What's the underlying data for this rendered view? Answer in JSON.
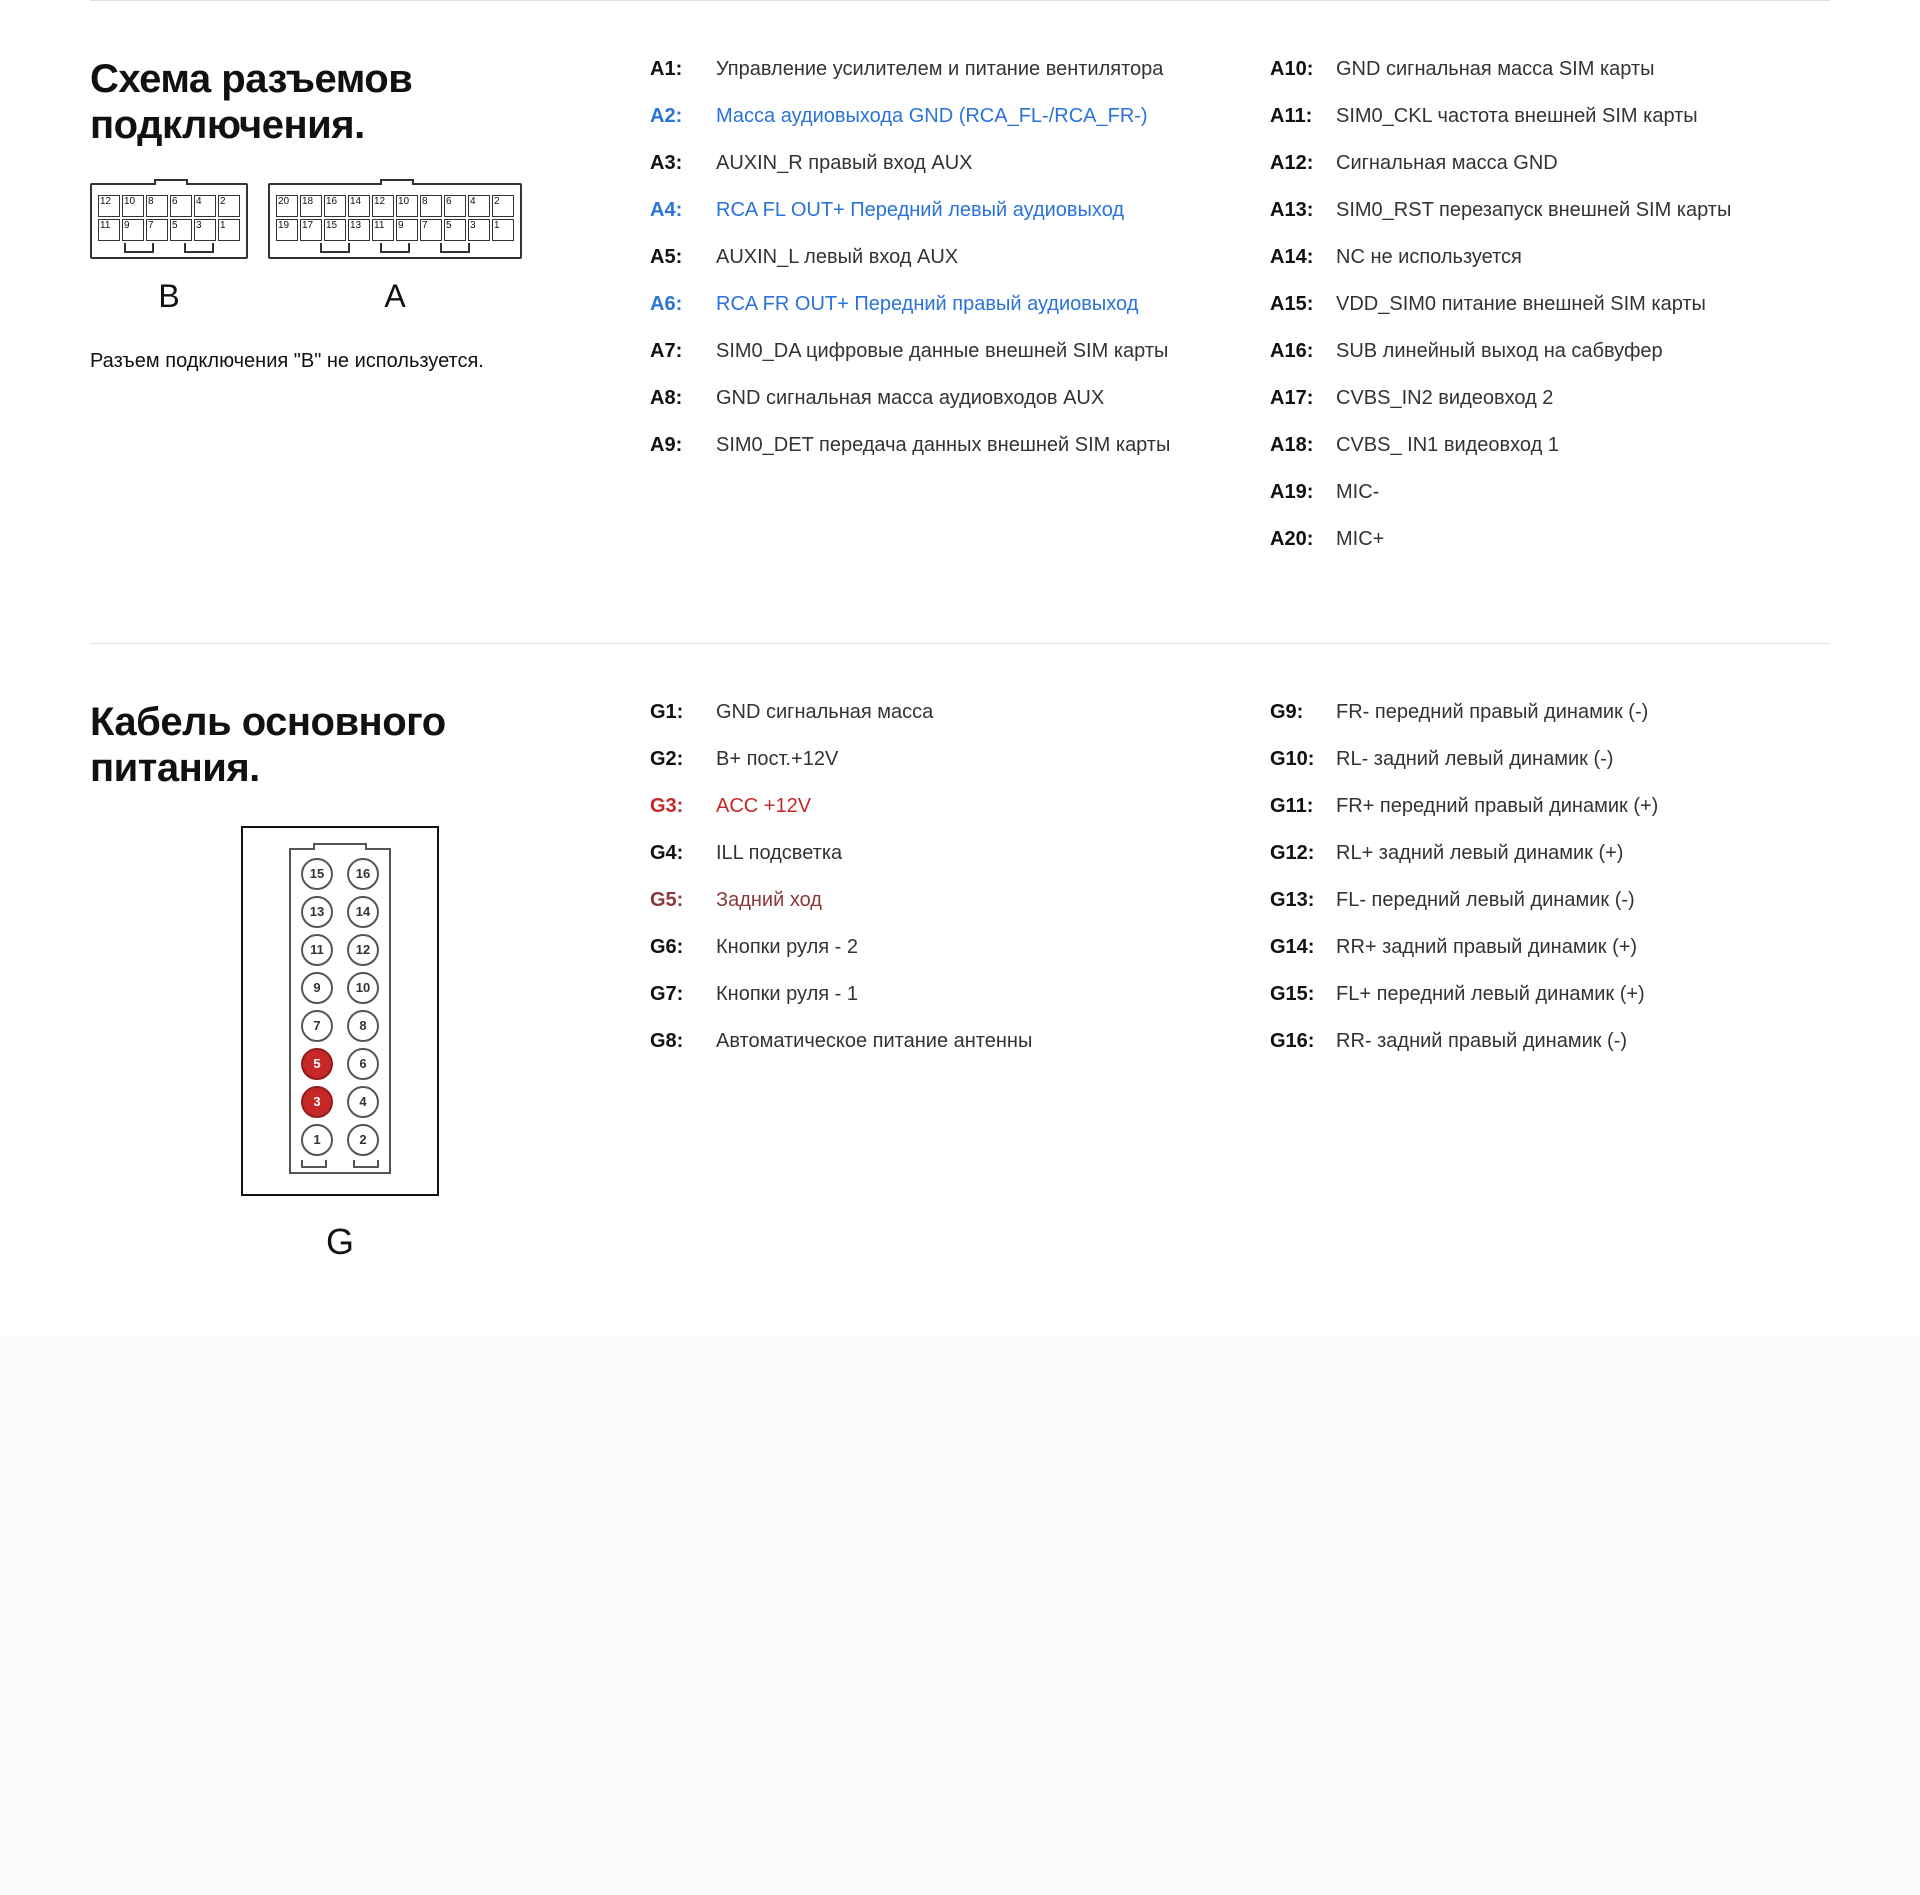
{
  "section1": {
    "title": "Схема разъемов подключения.",
    "note": "Разъем подключения \"B\" не используется.",
    "conn_b_label": "B",
    "conn_a_label": "A",
    "conn_b_rows": [
      [
        12,
        10,
        8,
        6,
        4,
        2
      ],
      [
        11,
        9,
        7,
        5,
        3,
        1
      ]
    ],
    "conn_a_rows": [
      [
        20,
        18,
        16,
        14,
        12,
        10,
        8,
        6,
        4,
        2
      ],
      [
        19,
        17,
        15,
        13,
        11,
        9,
        7,
        5,
        3,
        1
      ]
    ],
    "pinsA_left": [
      {
        "k": "A1:",
        "d": "Управление усилителем и питание вентилятора"
      },
      {
        "k": "A2:",
        "d": "Масса аудиовыхода GND (RCA_FL-/RCA_FR-)",
        "cls": "blue"
      },
      {
        "k": "A3:",
        "d": "AUXIN_R правый вход AUX"
      },
      {
        "k": "A4:",
        "d": "RCA FL OUT+  Передний левый аудиовыход",
        "cls": "blue"
      },
      {
        "k": "A5:",
        "d": "AUXIN_L левый вход AUX"
      },
      {
        "k": "A6:",
        "d": "RCA FR OUT+  Передний правый аудиовыход",
        "cls": "blue"
      },
      {
        "k": "A7:",
        "d": "SIM0_DA цифровые данные внешней SIM карты"
      },
      {
        "k": "A8:",
        "d": "GND сигнальная масса аудиовходов AUX"
      },
      {
        "k": "A9:",
        "d": "SIM0_DET передача данных внешней SIM карты"
      }
    ],
    "pinsA_right": [
      {
        "k": "A10:",
        "d": "GND сигнальная масса SIM карты"
      },
      {
        "k": "A11:",
        "d": "SIM0_CKL частота внешней SIM карты"
      },
      {
        "k": "A12:",
        "d": "Сигнальная масса GND"
      },
      {
        "k": "A13:",
        "d": "SIM0_RST перезапуск внешней SIM карты"
      },
      {
        "k": "A14:",
        "d": "NC  не используется"
      },
      {
        "k": "A15:",
        "d": "VDD_SIM0 питание внешней SIM карты"
      },
      {
        "k": "A16:",
        "d": "SUB линейный выход на сабвуфер"
      },
      {
        "k": "A17:",
        "d": "CVBS_IN2 видеовход 2"
      },
      {
        "k": "A18:",
        "d": "CVBS_ IN1 видеовход 1"
      },
      {
        "k": "A19:",
        "d": "MIC-"
      },
      {
        "k": "A20:",
        "d": "MIC+"
      }
    ]
  },
  "section2": {
    "title": "Кабель основного питания.",
    "g_label": "G",
    "g_rows": [
      [
        15,
        16
      ],
      [
        13,
        14
      ],
      [
        11,
        12
      ],
      [
        9,
        10
      ],
      [
        7,
        8
      ],
      [
        5,
        6
      ],
      [
        3,
        4
      ],
      [
        1,
        2
      ]
    ],
    "g_hot": [
      3,
      5
    ],
    "pinsG_left": [
      {
        "k": "G1:",
        "d": "GND сигнальная масса"
      },
      {
        "k": "G2:",
        "d": "B+ пост.+12V"
      },
      {
        "k": "G3:",
        "d": "ACC +12V",
        "cls": "red"
      },
      {
        "k": "G4:",
        "d": "ILL подсветка"
      },
      {
        "k": "G5:",
        "d": "Задний ход",
        "cls": "brown"
      },
      {
        "k": "G6:",
        "d": "Кнопки руля - 2"
      },
      {
        "k": "G7:",
        "d": "Кнопки руля - 1"
      },
      {
        "k": "G8:",
        "d": "Автоматическое питание антенны"
      }
    ],
    "pinsG_right": [
      {
        "k": "G9:",
        "d": "FR- передний правый динамик (-)"
      },
      {
        "k": "G10:",
        "d": "RL- задний левый динамик (-)"
      },
      {
        "k": "G11:",
        "d": "FR+ передний правый динамик (+)"
      },
      {
        "k": "G12:",
        "d": "RL+ задний левый динамик (+)"
      },
      {
        "k": "G13:",
        "d": "FL- передний левый динамик (-)"
      },
      {
        "k": "G14:",
        "d": "RR+ задний правый динамик (+)"
      },
      {
        "k": "G15:",
        "d": "FL+ передний левый динамик (+)"
      },
      {
        "k": "G16:",
        "d": "RR- задний правый динамик (-)"
      }
    ]
  }
}
